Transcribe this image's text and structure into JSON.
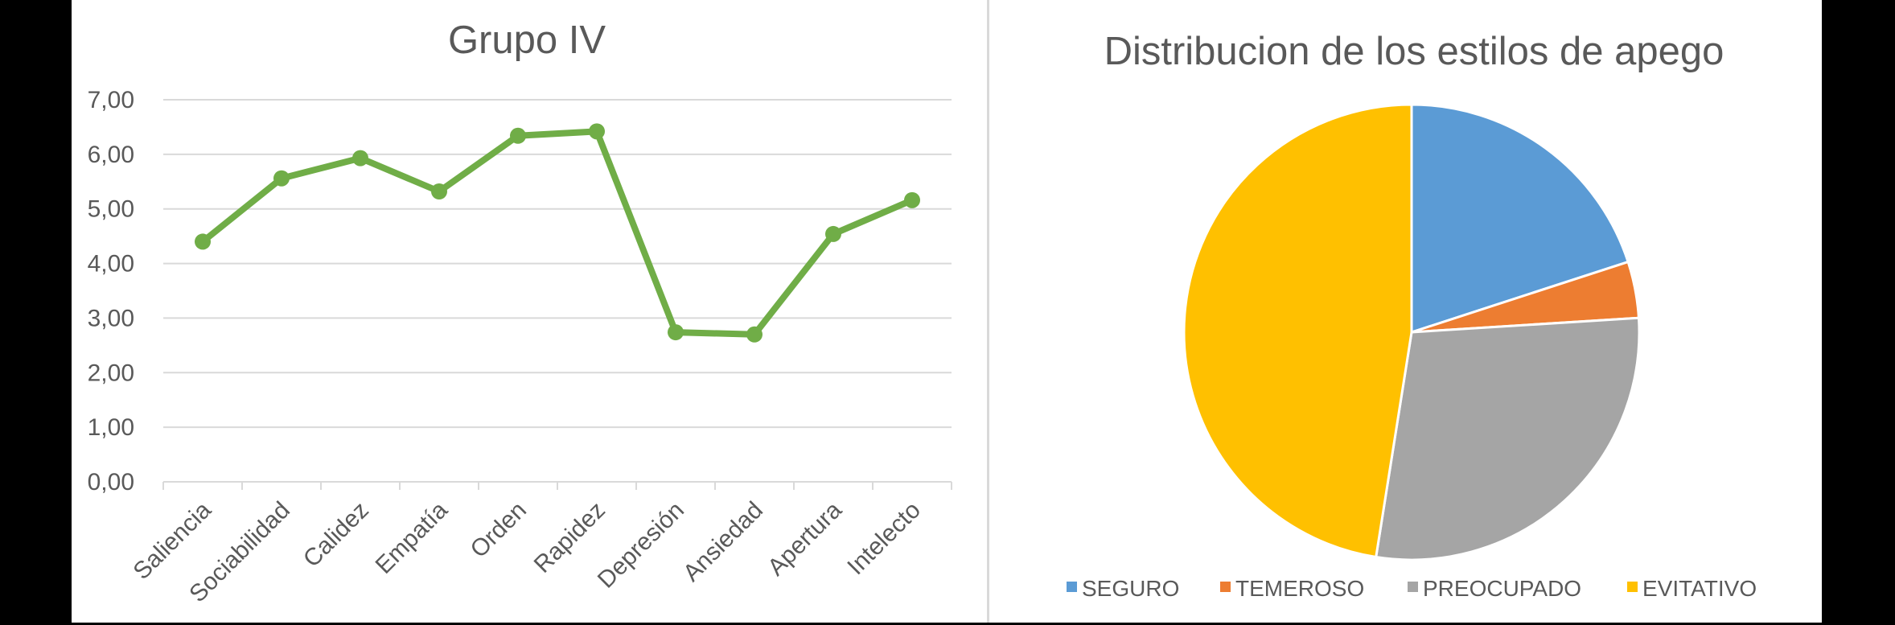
{
  "chart_data": [
    {
      "type": "line",
      "title": "Grupo IV",
      "xlabel": "",
      "ylabel": "",
      "categories": [
        "Saliencia",
        "Sociabilidad",
        "Calidez",
        "Empatía",
        "Orden",
        "Rapidez",
        "Depresión",
        "Ansiedad",
        "Apertura",
        "Intelecto"
      ],
      "series": [
        {
          "name": "Grupo IV",
          "color": "#70AD47",
          "values": [
            4.4,
            5.56,
            5.93,
            5.32,
            6.34,
            6.42,
            2.74,
            2.7,
            4.54,
            5.16
          ]
        }
      ],
      "ylim": [
        0,
        7
      ],
      "yticks": [
        "0,00",
        "1,00",
        "2,00",
        "3,00",
        "4,00",
        "5,00",
        "6,00",
        "7,00"
      ],
      "grid": true,
      "legend": "none",
      "markers": true
    },
    {
      "type": "pie",
      "title": "Distribucion de los estilos de apego",
      "categories": [
        "SEGURO",
        "TEMEROSO",
        "PREOCUPADO",
        "EVITATIVO"
      ],
      "values": [
        20.0,
        4.0,
        28.5,
        47.5
      ],
      "value_unit": "percent (estimated from slice angles)",
      "colors": [
        "#5B9BD5",
        "#ED7D31",
        "#A5A5A5",
        "#FFC000"
      ],
      "start_angle": "12 o'clock, clockwise",
      "legend_position": "bottom"
    }
  ],
  "colors": {
    "text": "#595959",
    "gridline": "#D9D9D9",
    "background": "#FFFFFF",
    "frame": "#000000"
  }
}
